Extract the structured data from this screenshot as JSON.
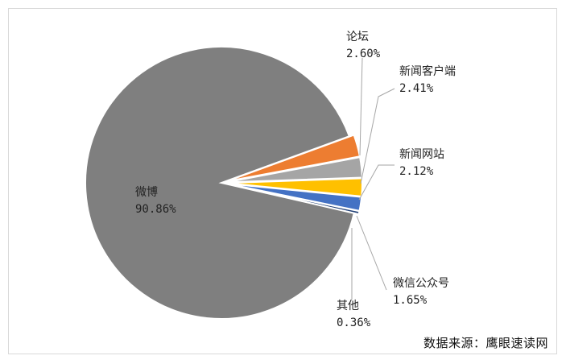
{
  "chart_data": {
    "type": "pie",
    "categories": [
      "论坛",
      "新闻客户端",
      "新闻网站",
      "微信公众号",
      "其他",
      "微博"
    ],
    "values": [
      2.6,
      2.41,
      2.12,
      1.65,
      0.36,
      90.86
    ],
    "value_labels": [
      "2.60%",
      "2.41%",
      "2.12%",
      "1.65%",
      "0.36%",
      "90.86%"
    ],
    "colors": [
      "#ed7d31",
      "#a5a5a5",
      "#ffc000",
      "#4472c4",
      "#264478",
      "#7f7f7f"
    ],
    "title": "",
    "legend": "none"
  },
  "source_note": "数据来源：鹰眼速读网"
}
